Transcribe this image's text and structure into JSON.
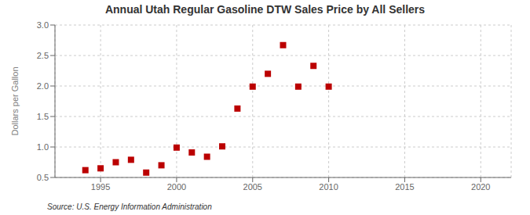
{
  "chart_data": {
    "type": "scatter",
    "title": "Annual Utah Regular Gasoline DTW Sales Price by All Sellers",
    "ylabel": "Dollars per Gallon",
    "annotations": [
      "Source: U.S. Energy Information Administration"
    ],
    "x": [
      1994,
      1995,
      1996,
      1997,
      1998,
      1999,
      2000,
      2001,
      2002,
      2003,
      2004,
      2005,
      2006,
      2007,
      2008,
      2009,
      2010
    ],
    "values": [
      0.62,
      0.65,
      0.75,
      0.79,
      0.58,
      0.7,
      0.99,
      0.91,
      0.84,
      1.01,
      1.63,
      1.99,
      2.2,
      2.67,
      1.99,
      2.33,
      1.99
    ],
    "color": "#bb0000",
    "marker": "square",
    "xlim": [
      1992,
      2022
    ],
    "ylim": [
      0.5,
      3.0
    ],
    "xticks": [
      1995,
      2000,
      2005,
      2010,
      2015,
      2020
    ],
    "yticks": [
      0.5,
      {
        "value": 1.0,
        "label": "1.0"
      },
      1.5,
      {
        "value": 2.0,
        "label": "2.0"
      },
      2.5,
      {
        "value": 3.0,
        "label": "3.0"
      }
    ],
    "grid": true
  }
}
